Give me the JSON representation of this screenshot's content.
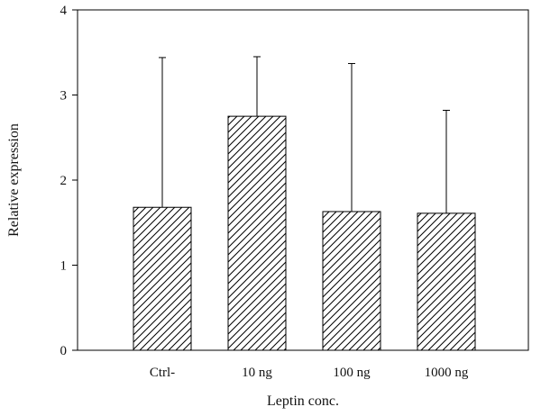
{
  "chart_data": {
    "type": "bar",
    "title": "",
    "xlabel": "Leptin conc.",
    "ylabel": "Relative expression",
    "categories": [
      "Ctrl-",
      "10 ng",
      "100 ng",
      "1000 ng"
    ],
    "values": [
      1.68,
      2.75,
      1.63,
      1.61
    ],
    "error_upper": [
      3.44,
      3.45,
      3.37,
      2.82
    ],
    "ylim": [
      0,
      4
    ],
    "yticks": [
      "0",
      "1",
      "2",
      "3",
      "4"
    ],
    "bar_fill": "hatched",
    "grid": false,
    "legend": "none",
    "colors": {
      "bar_stroke": "#000000",
      "hatch": "#000000",
      "axis": "#000000",
      "background": "#ffffff"
    }
  }
}
